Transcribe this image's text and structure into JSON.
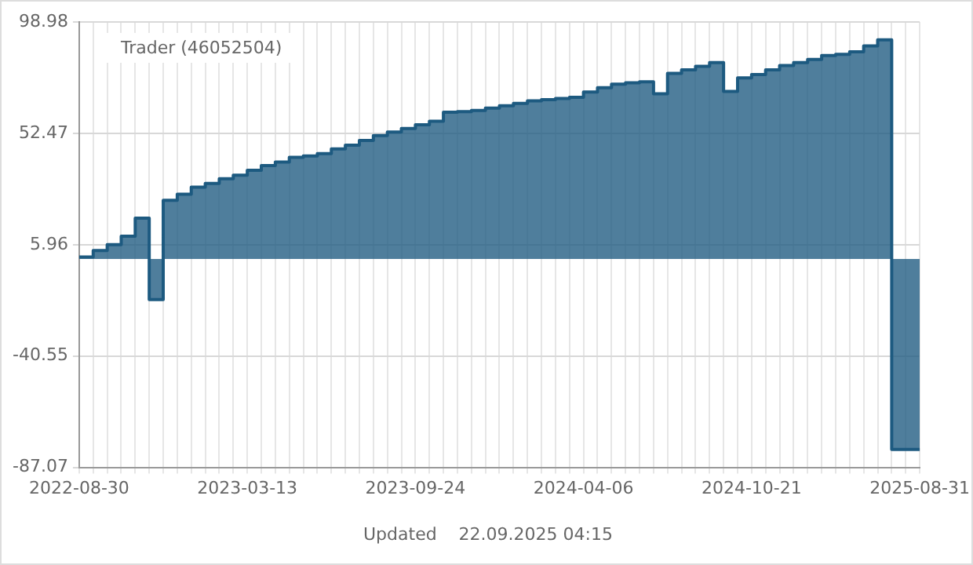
{
  "chart_data": {
    "type": "area",
    "title": "Trader (46052504)",
    "annotations": [
      "Updated    22.09.2025 04:15"
    ],
    "categories": [
      "2022-08-30",
      null,
      null,
      null,
      null,
      null,
      null,
      null,
      null,
      null,
      null,
      null,
      "2023-03-13",
      null,
      null,
      null,
      null,
      null,
      null,
      null,
      null,
      null,
      null,
      null,
      "2023-09-24",
      null,
      null,
      null,
      null,
      null,
      null,
      null,
      null,
      null,
      null,
      null,
      "2024-04-06",
      null,
      null,
      null,
      null,
      null,
      null,
      null,
      null,
      null,
      null,
      null,
      "2024-10-21",
      null,
      null,
      null,
      null,
      null,
      null,
      null,
      null,
      null,
      null,
      null,
      "2025-08-31"
    ],
    "series": [
      {
        "color": "#1d5a80",
        "values": [
          0.8,
          3.5,
          6,
          9.5,
          17,
          -17,
          24.5,
          27,
          30,
          31.5,
          33.5,
          35,
          37,
          39,
          40.5,
          42.4,
          43,
          44,
          46,
          47.5,
          49.5,
          51.5,
          53,
          54.5,
          56,
          57.5,
          61.3,
          61.5,
          62,
          63,
          64,
          65,
          66,
          66.5,
          67,
          67.5,
          69.7,
          71.5,
          73,
          73.6,
          74,
          69,
          77.5,
          79,
          80.5,
          82,
          70,
          75.6,
          77,
          79,
          80.8,
          82,
          83.3,
          85,
          85.5,
          86.5,
          89,
          91.5,
          -79.6,
          -79.6,
          -79.6
        ]
      }
    ],
    "ylim": [
      -87.07,
      98.98
    ],
    "yticks": [
      -87.07,
      -40.55,
      5.96,
      52.47,
      98.98
    ],
    "grid": true,
    "line_style": "solid",
    "marker": "none"
  }
}
